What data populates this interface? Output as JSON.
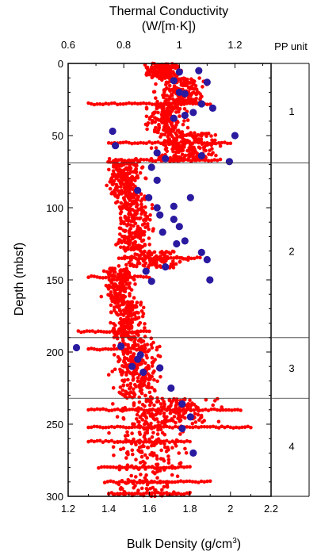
{
  "chart_data": {
    "type": "scatter",
    "title": "",
    "top_axis": {
      "label_line1": "Thermal Conductivity",
      "label_line2": "(W/[m·K])",
      "range": [
        0.6,
        1.33
      ],
      "ticks": [
        0.6,
        0.8,
        1,
        1.2
      ],
      "tick_labels": [
        "0.6",
        "0.8",
        "1",
        "1.2"
      ]
    },
    "bottom_axis": {
      "label": "Bulk Density (g/cm",
      "label_sup": "3",
      "label_end": ")",
      "range": [
        1.2,
        2.2
      ],
      "ticks": [
        1.2,
        1.4,
        1.6,
        1.8,
        2,
        2.2
      ],
      "tick_labels": [
        "1.2",
        "1.4",
        "1.6",
        "1.8",
        "2",
        "2.2"
      ]
    },
    "y_axis": {
      "label": "Depth (mbsf)",
      "range": [
        0,
        300
      ],
      "inverted": true,
      "ticks": [
        0,
        50,
        100,
        150,
        200,
        250,
        300
      ],
      "tick_labels": [
        "0",
        "50",
        "100",
        "150",
        "200",
        "250",
        "300"
      ]
    },
    "pp_unit": {
      "header": "PP unit",
      "boundaries": [
        69,
        190,
        232
      ],
      "units": [
        {
          "label": "1",
          "depth": 33
        },
        {
          "label": "2",
          "depth": 130
        },
        {
          "label": "3",
          "depth": 211
        },
        {
          "label": "4",
          "depth": 265
        }
      ]
    },
    "series": [
      {
        "name": "",
        "marker": "small red dot",
        "color": "#ff0000",
        "axis": "bottom",
        "bands": [
          {
            "d0": 0,
            "d1": 10,
            "x0": 1.55,
            "x1": 1.78,
            "n": 150
          },
          {
            "d0": 10,
            "d1": 28,
            "x0": 1.6,
            "x1": 1.92,
            "n": 200
          },
          {
            "d0": 28,
            "d1": 48,
            "x0": 1.55,
            "x1": 1.82,
            "n": 150
          },
          {
            "d0": 48,
            "d1": 68,
            "x0": 1.55,
            "x1": 1.98,
            "n": 220
          },
          {
            "d0": 66,
            "d1": 92,
            "x0": 1.35,
            "x1": 1.6,
            "n": 220
          },
          {
            "d0": 92,
            "d1": 130,
            "x0": 1.4,
            "x1": 1.65,
            "n": 240
          },
          {
            "d0": 130,
            "d1": 142,
            "x0": 1.4,
            "x1": 1.85,
            "n": 110
          },
          {
            "d0": 142,
            "d1": 165,
            "x0": 1.35,
            "x1": 1.55,
            "n": 160
          },
          {
            "d0": 165,
            "d1": 190,
            "x0": 1.38,
            "x1": 1.6,
            "n": 180
          },
          {
            "d0": 190,
            "d1": 232,
            "x0": 1.38,
            "x1": 1.7,
            "n": 240
          },
          {
            "d0": 232,
            "d1": 250,
            "x0": 1.35,
            "x1": 2.0,
            "n": 180
          },
          {
            "d0": 250,
            "d1": 300,
            "x0": 1.35,
            "x1": 1.85,
            "n": 200
          }
        ],
        "streaks": [
          {
            "depth": 28,
            "x0": 1.3,
            "x1": 1.9
          },
          {
            "depth": 55,
            "x0": 1.4,
            "x1": 2.0
          },
          {
            "depth": 67,
            "x0": 1.5,
            "x1": 1.95
          },
          {
            "depth": 135,
            "x0": 1.45,
            "x1": 1.85
          },
          {
            "depth": 148,
            "x0": 1.3,
            "x1": 1.6
          },
          {
            "depth": 186,
            "x0": 1.25,
            "x1": 1.6
          },
          {
            "depth": 198,
            "x0": 1.3,
            "x1": 1.58
          },
          {
            "depth": 240,
            "x0": 1.3,
            "x1": 2.05
          },
          {
            "depth": 252,
            "x0": 1.3,
            "x1": 2.1
          },
          {
            "depth": 262,
            "x0": 1.3,
            "x1": 1.8
          },
          {
            "depth": 280,
            "x0": 1.35,
            "x1": 1.8
          },
          {
            "depth": 290,
            "x0": 1.38,
            "x1": 1.9
          },
          {
            "depth": 298,
            "x0": 1.4,
            "x1": 1.8
          }
        ]
      },
      {
        "name": "",
        "marker": "large blue circle",
        "color": "#2a1aa0",
        "axis": "top",
        "points": [
          [
            1.0,
            6
          ],
          [
            1.07,
            5
          ],
          [
            0.98,
            12
          ],
          [
            1.1,
            13
          ],
          [
            1.0,
            20
          ],
          [
            1.02,
            21
          ],
          [
            1.08,
            28
          ],
          [
            1.12,
            31
          ],
          [
            0.98,
            38
          ],
          [
            1.02,
            36
          ],
          [
            1.05,
            34
          ],
          [
            0.76,
            47
          ],
          [
            1.2,
            50
          ],
          [
            0.77,
            57
          ],
          [
            0.92,
            62
          ],
          [
            0.95,
            66
          ],
          [
            1.08,
            64
          ],
          [
            1.18,
            68
          ],
          [
            0.9,
            72
          ],
          [
            0.85,
            88
          ],
          [
            0.92,
            81
          ],
          [
            0.89,
            93
          ],
          [
            1.04,
            93
          ],
          [
            0.92,
            100
          ],
          [
            0.98,
            99
          ],
          [
            0.93,
            105
          ],
          [
            0.98,
            108
          ],
          [
            0.94,
            117
          ],
          [
            1.0,
            113
          ],
          [
            1.02,
            123
          ],
          [
            0.99,
            125
          ],
          [
            1.08,
            131
          ],
          [
            1.1,
            136
          ],
          [
            0.95,
            141
          ],
          [
            0.88,
            144
          ],
          [
            0.9,
            151
          ],
          [
            1.11,
            150
          ],
          [
            0.63,
            197
          ],
          [
            0.79,
            196
          ],
          [
            0.86,
            202
          ],
          [
            0.85,
            205
          ],
          [
            0.83,
            210
          ],
          [
            0.87,
            214
          ],
          [
            0.93,
            211
          ],
          [
            0.97,
            225
          ],
          [
            1.01,
            236
          ],
          [
            1.04,
            245
          ],
          [
            1.01,
            253
          ],
          [
            1.05,
            270
          ]
        ]
      }
    ]
  }
}
